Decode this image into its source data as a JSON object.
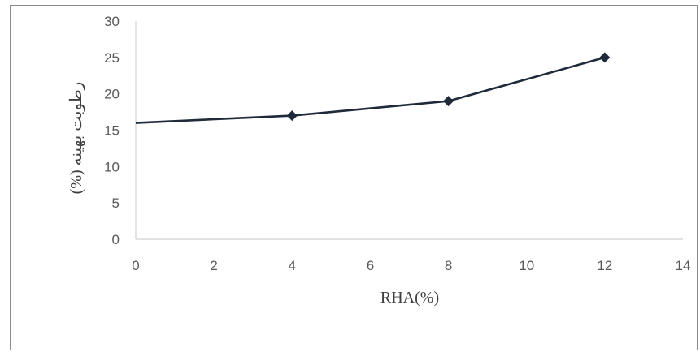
{
  "chart_data": {
    "type": "line",
    "title": "",
    "xlabel": "RHA(%)",
    "ylabel": "رطوبت بهینه (%)",
    "xlim": [
      0,
      14
    ],
    "ylim": [
      0,
      30
    ],
    "x_ticks": [
      0,
      2,
      4,
      6,
      8,
      10,
      12,
      14
    ],
    "y_ticks": [
      0,
      5,
      10,
      15,
      20,
      25,
      30
    ],
    "grid": false,
    "legend": "none",
    "series": [
      {
        "color": "#1f2a3a",
        "marker": "diamond",
        "points": [
          {
            "x": 0,
            "y": 16
          },
          {
            "x": 4,
            "y": 17
          },
          {
            "x": 8,
            "y": 19
          },
          {
            "x": 12,
            "y": 25
          }
        ],
        "markers_at": [
          4,
          8,
          12
        ]
      }
    ]
  }
}
